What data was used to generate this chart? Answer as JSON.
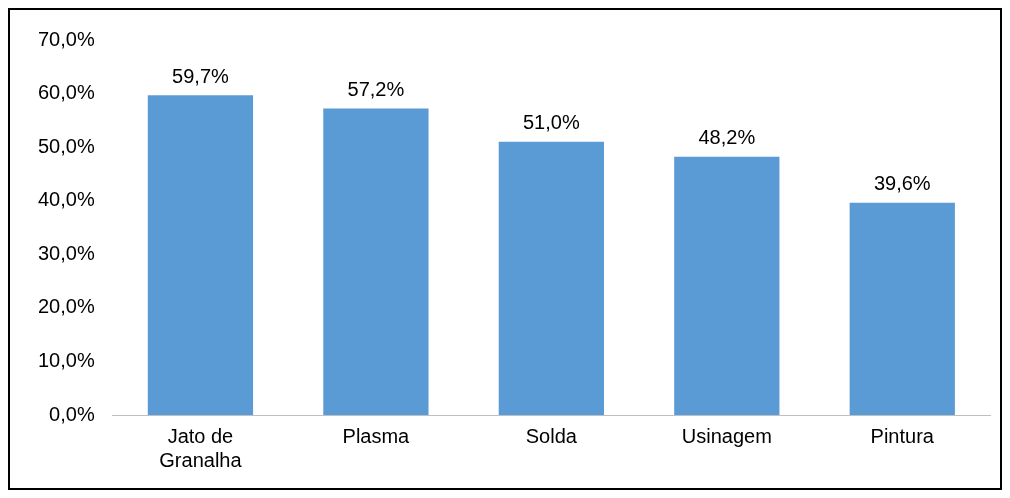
{
  "chart_data": {
    "type": "bar",
    "categories": [
      "Jato de Granalha",
      "Plasma",
      "Solda",
      "Usinagem",
      "Pintura"
    ],
    "values": [
      59.7,
      57.2,
      51.0,
      48.2,
      39.6
    ],
    "value_labels": [
      "59,7%",
      "57,2%",
      "51,0%",
      "48,2%",
      "39,6%"
    ],
    "color": "#5b9bd5",
    "ylim": [
      0,
      70
    ],
    "yticks": [
      {
        "value": 0,
        "label": "0,0%"
      },
      {
        "value": 10,
        "label": "10,0%"
      },
      {
        "value": 20,
        "label": "20,0%"
      },
      {
        "value": 30,
        "label": "30,0%"
      },
      {
        "value": 40,
        "label": "40,0%"
      },
      {
        "value": 50,
        "label": "50,0%"
      },
      {
        "value": 60,
        "label": "60,0%"
      },
      {
        "value": 70,
        "label": "70,0%"
      }
    ],
    "grid": false,
    "legend": false
  }
}
